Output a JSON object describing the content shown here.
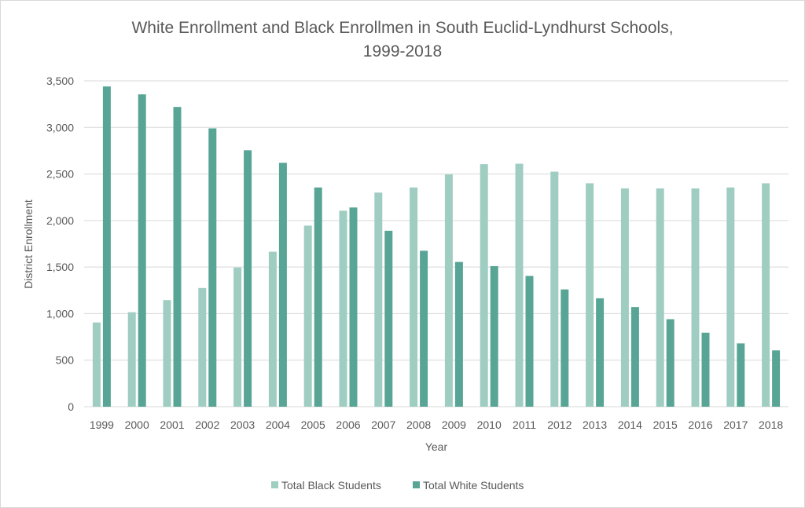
{
  "chart_data": {
    "type": "bar",
    "title_line1": "White Enrollment and Black Enrollmen in South Euclid-Lyndhurst Schools,",
    "title_line2": "1999-2018",
    "xlabel": "Year",
    "ylabel": "District Enrollment",
    "ylim": [
      0,
      3500
    ],
    "ytick_step": 500,
    "yticks": [
      "0",
      "500",
      "1,000",
      "1,500",
      "2,000",
      "2,500",
      "3,000",
      "3,500"
    ],
    "grid": true,
    "legend_position": "bottom",
    "categories": [
      "1999",
      "2000",
      "2001",
      "2002",
      "2003",
      "2004",
      "2005",
      "2006",
      "2007",
      "2008",
      "2009",
      "2010",
      "2011",
      "2012",
      "2013",
      "2014",
      "2015",
      "2016",
      "2017",
      "2018"
    ],
    "series": [
      {
        "name": "Total Black Students",
        "color": "#9fcdc1",
        "values": [
          905,
          1015,
          1145,
          1275,
          1495,
          1665,
          1945,
          2105,
          2300,
          2355,
          2495,
          2605,
          2610,
          2525,
          2400,
          2345,
          2345,
          2345,
          2355,
          2400
        ]
      },
      {
        "name": "Total White Students",
        "color": "#58a595",
        "values": [
          3440,
          3355,
          3220,
          2990,
          2755,
          2620,
          2355,
          2140,
          1890,
          1675,
          1555,
          1510,
          1405,
          1260,
          1165,
          1070,
          940,
          795,
          680,
          605
        ]
      }
    ]
  }
}
